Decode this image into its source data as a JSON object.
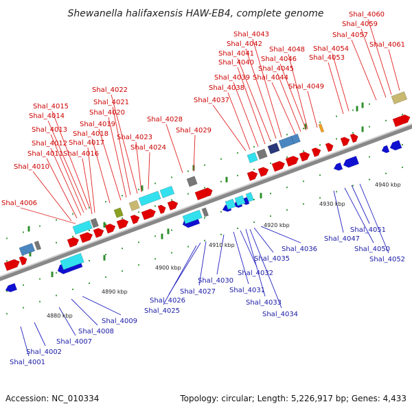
{
  "title": "Shewanella halifaxensis HAW-EB4, complete genome",
  "footer": {
    "accession": "Accession: NC_010334",
    "topology": "Topology: circular; Length: 5,226,917 bp; Genes: 4,433"
  },
  "axis_labels": [
    "4880 kbp",
    "4890 kbp",
    "4900 kbp",
    "4910 kbp",
    "4920 kbp",
    "4930 kbp",
    "4940 kbp"
  ],
  "top_genes": [
    "Shal_4006",
    "Shal_4010",
    "Shal_4011",
    "Shal_4012",
    "Shal_4013",
    "Shal_4014",
    "Shal_4015",
    "Shal_4016",
    "Shal_4017",
    "Shal_4018",
    "Shal_4019",
    "Shal_4020",
    "Shal_4021",
    "Shal_4022",
    "Shal_4023",
    "Shal_4024",
    "Shal_4028",
    "Shal_4029",
    "Shal_4037",
    "Shal_4038",
    "Shal_4039",
    "Shal_4040",
    "Shal_4041",
    "Shal_4042",
    "Shal_4043",
    "Shal_4044",
    "Shal_4045",
    "Shal_4046",
    "Shal_4048",
    "Shal_4049",
    "Shal_4053",
    "Shal_4054",
    "Shal_4057",
    "Shal_4059",
    "Shal_4060",
    "Shal_4061"
  ],
  "bottom_genes": [
    "Shal_4001",
    "Shal_4002",
    "Shal_4007",
    "Shal_4008",
    "Shal_4009",
    "Shal_4025",
    "Shal_4026",
    "Shal_4027",
    "Shal_4030",
    "Shal_4031",
    "Shal_4032",
    "Shal_4033",
    "Shal_4034",
    "Shal_4035",
    "Shal_4036",
    "Shal_4047",
    "Shal_4050",
    "Shal_4051",
    "Shal_4052"
  ],
  "colors": {
    "forward": "#e00000",
    "reverse": "#1010d0",
    "cyan": "#33e0ee",
    "steel": "#4a86c0",
    "gray": "#777777",
    "olive": "#8aa020",
    "khaki": "#c8b870",
    "navy": "#283878",
    "orange": "#f0a020"
  }
}
